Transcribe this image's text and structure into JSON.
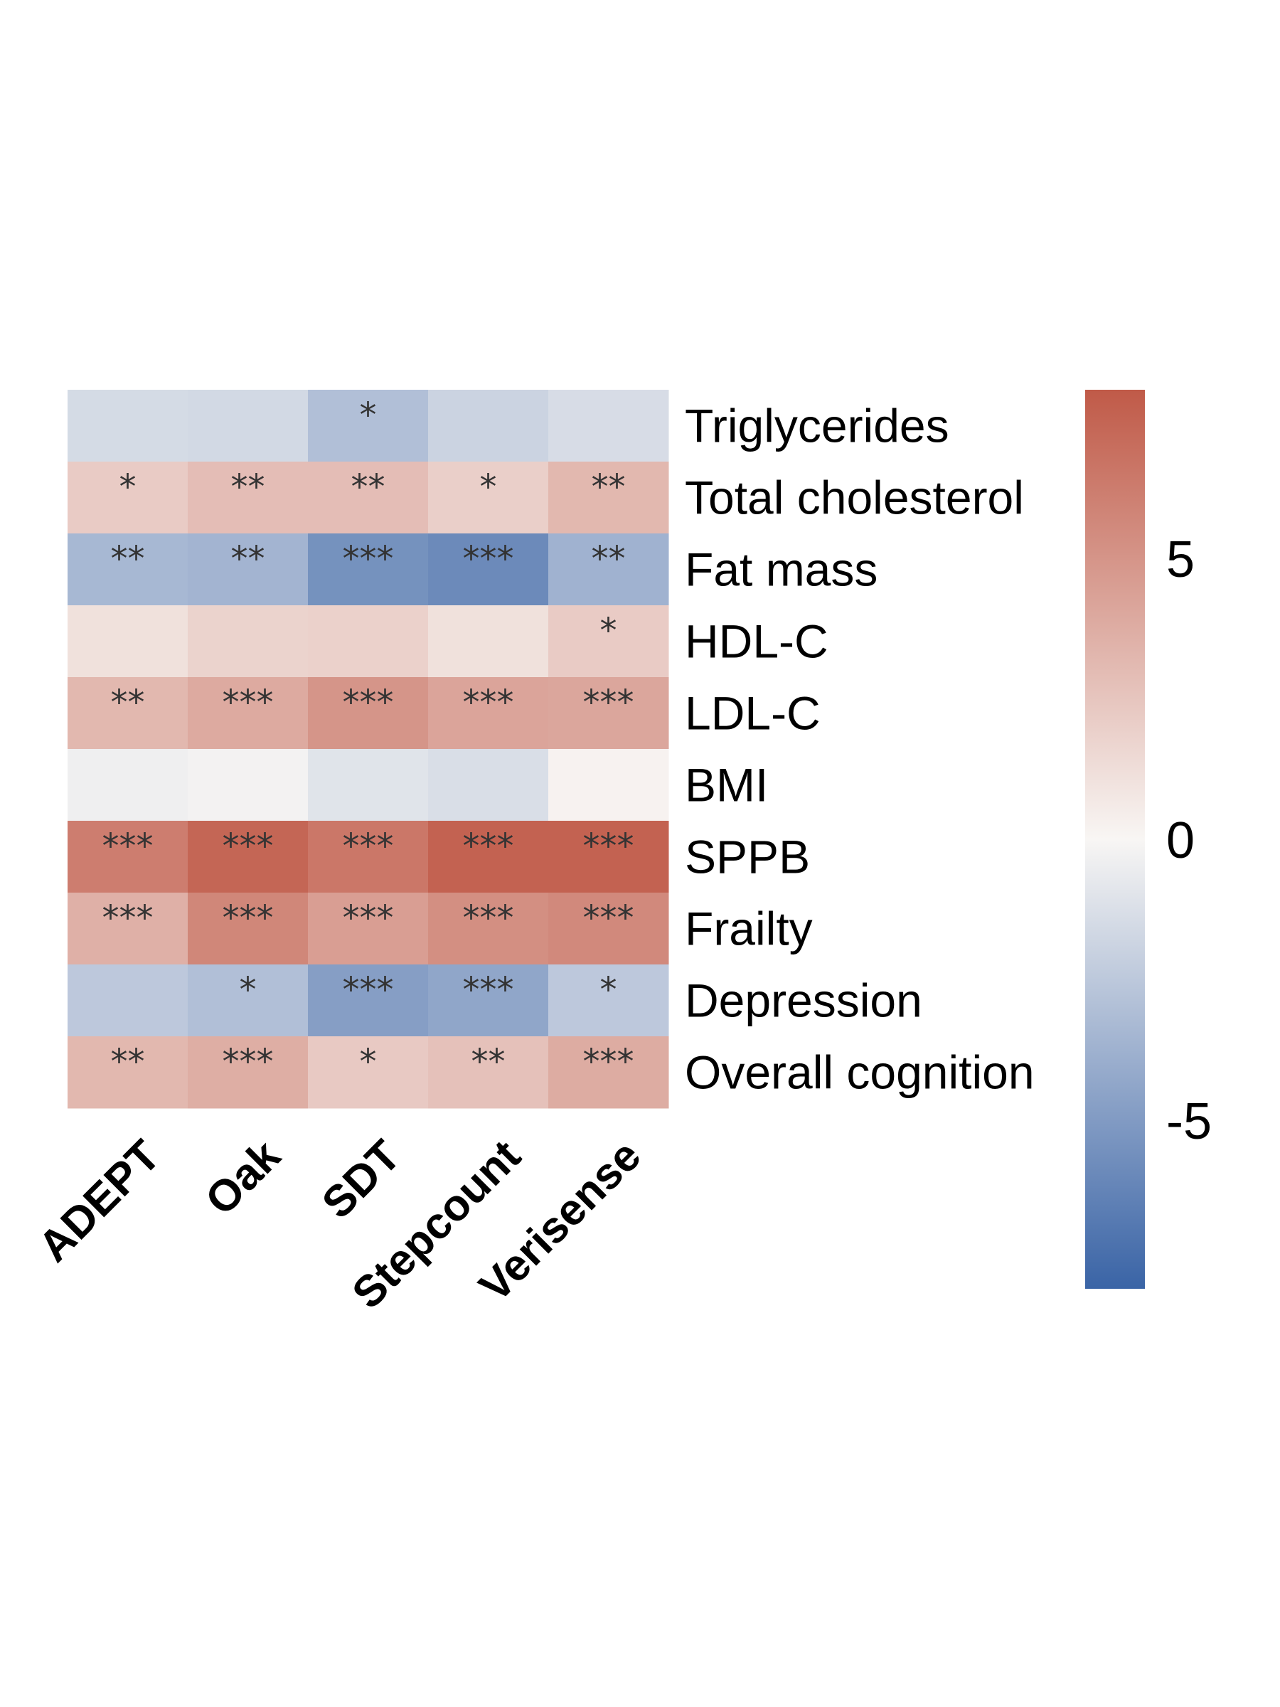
{
  "chart_data": {
    "type": "heatmap",
    "columns": [
      "ADEPT",
      "Oak",
      "SDT",
      "Stepcount",
      "Verisense"
    ],
    "rows": [
      "Triglycerides",
      "Total cholesterol",
      "Fat mass",
      "HDL-C",
      "LDL-C",
      "BMI",
      "SPPB",
      "Frailty",
      "Depression",
      "Overall cognition"
    ],
    "values": [
      [
        -1.5,
        -1.6,
        -3.0,
        -1.9,
        -1.4
      ],
      [
        2.2,
        2.9,
        2.9,
        2.0,
        3.2
      ],
      [
        -3.4,
        -3.6,
        -5.5,
        -5.9,
        -3.7
      ],
      [
        1.1,
        1.8,
        1.9,
        1.1,
        2.2
      ],
      [
        3.2,
        3.9,
        5.0,
        4.2,
        4.1
      ],
      [
        -0.4,
        -0.2,
        -1.0,
        -1.3,
        0.2
      ],
      [
        6.2,
        7.4,
        6.5,
        7.6,
        7.6
      ],
      [
        3.6,
        5.7,
        4.5,
        5.3,
        5.6
      ],
      [
        -2.5,
        -3.0,
        -4.8,
        -4.4,
        -2.5
      ],
      [
        3.2,
        3.7,
        2.3,
        2.7,
        3.8
      ]
    ],
    "annotations": [
      [
        "",
        "",
        "*",
        "",
        ""
      ],
      [
        "*",
        "**",
        "**",
        "*",
        "**"
      ],
      [
        "**",
        "**",
        "***",
        "***",
        "**"
      ],
      [
        "",
        "",
        "",
        "",
        "*"
      ],
      [
        "**",
        "***",
        "***",
        "***",
        "***"
      ],
      [
        "",
        "",
        "",
        "",
        ""
      ],
      [
        "***",
        "***",
        "***",
        "***",
        "***"
      ],
      [
        "***",
        "***",
        "***",
        "***",
        "***"
      ],
      [
        "",
        "*",
        "***",
        "***",
        "*"
      ],
      [
        "**",
        "***",
        "*",
        "**",
        "***"
      ]
    ],
    "colorbar": {
      "range": [
        -8,
        8
      ],
      "ticks": [
        5,
        0,
        -5
      ],
      "tick_labels": [
        "5",
        "0",
        "-5"
      ],
      "colors": {
        "low": "#3a64a6",
        "mid": "#f8f6f4",
        "high": "#c05a48"
      }
    },
    "title": "",
    "xlabel": "",
    "ylabel": ""
  }
}
